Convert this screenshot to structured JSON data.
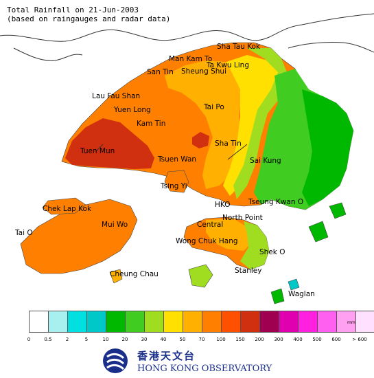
{
  "title": {
    "line1": "Total Rainfall on 21-Jun-2003",
    "line2": "(based on raingauges and radar data)"
  },
  "places": [
    {
      "id": "sha-tau-kok",
      "name": "Sha Tau Kok"
    },
    {
      "id": "man-kam-to",
      "name": "Man Kam To"
    },
    {
      "id": "ta-kwu-ling",
      "name": "Ta Kwu Ling"
    },
    {
      "id": "san-tin",
      "name": "San Tin"
    },
    {
      "id": "sheung-shui",
      "name": "Sheung Shui"
    },
    {
      "id": "lau-fau-shan",
      "name": "Lau Fau Shan"
    },
    {
      "id": "yuen-long",
      "name": "Yuen Long"
    },
    {
      "id": "tai-po",
      "name": "Tai Po"
    },
    {
      "id": "kam-tin",
      "name": "Kam Tin"
    },
    {
      "id": "tuen-mun",
      "name": "Tuen Mun"
    },
    {
      "id": "sha-tin",
      "name": "Sha Tin"
    },
    {
      "id": "tsuen-wan",
      "name": "Tsuen Wan"
    },
    {
      "id": "sai-kung",
      "name": "Sai Kung"
    },
    {
      "id": "tsing-yi",
      "name": "Tsing Yi"
    },
    {
      "id": "chek-lap-kok",
      "name": "Chek Lap Kok"
    },
    {
      "id": "hko",
      "name": "HKO"
    },
    {
      "id": "tseung-kwan-o",
      "name": "Tseung Kwan O"
    },
    {
      "id": "north-point",
      "name": "North Point"
    },
    {
      "id": "mui-wo",
      "name": "Mui Wo"
    },
    {
      "id": "central",
      "name": "Central"
    },
    {
      "id": "tai-o",
      "name": "Tai O"
    },
    {
      "id": "wong-chuk-hang",
      "name": "Wong Chuk Hang"
    },
    {
      "id": "shek-o",
      "name": "Shek O"
    },
    {
      "id": "cheung-chau",
      "name": "Cheung Chau"
    },
    {
      "id": "stanley",
      "name": "Stanley"
    },
    {
      "id": "waglan",
      "name": "Waglan"
    }
  ],
  "legend": {
    "unit": "mm",
    "colors": [
      "#ffffff",
      "#a8f0f0",
      "#00e0e0",
      "#00c8c8",
      "#00b800",
      "#40cc20",
      "#a0dc20",
      "#ffe000",
      "#ffb000",
      "#ff8000",
      "#ff5000",
      "#d03010",
      "#a00050",
      "#e000b0",
      "#ff20e0",
      "#ff60f0",
      "#ffa0f0",
      "#ffe0ff"
    ],
    "ticks": [
      "0",
      "0.5",
      "2",
      "5",
      "10",
      "20",
      "30",
      "40",
      "50",
      "70",
      "100",
      "150",
      "200",
      "300",
      "400",
      "500",
      "600",
      "> 600"
    ]
  },
  "logo": {
    "chinese": "香港天文台",
    "english": "HONG KONG OBSERVATORY"
  }
}
